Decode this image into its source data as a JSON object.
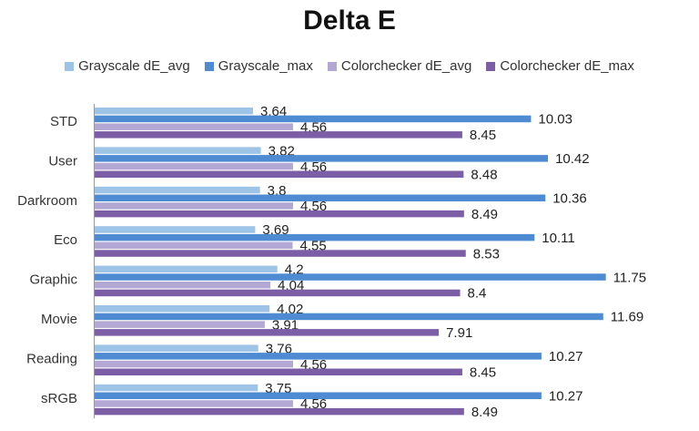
{
  "chart_data": {
    "type": "bar",
    "orientation": "horizontal",
    "title": "Delta E",
    "categories": [
      "STD",
      "User",
      "Darkroom",
      "Eco",
      "Graphic",
      "Movie",
      "Reading",
      "sRGB"
    ],
    "series": [
      {
        "name": "Grayscale dE_avg",
        "color": "#9dc3e6",
        "values": [
          3.64,
          3.82,
          3.8,
          3.69,
          4.2,
          4.02,
          3.76,
          3.75
        ]
      },
      {
        "name": "Grayscale_max",
        "color": "#4f8bd3",
        "values": [
          10.03,
          10.42,
          10.36,
          10.11,
          11.75,
          11.69,
          10.27,
          10.27
        ]
      },
      {
        "name": "Colorchecker dE_avg",
        "color": "#b3a8d4",
        "values": [
          4.56,
          4.56,
          4.56,
          4.55,
          4.04,
          3.91,
          4.56,
          4.56
        ]
      },
      {
        "name": "Colorchecker dE_max",
        "color": "#7b5ea6",
        "values": [
          8.45,
          8.48,
          8.49,
          8.53,
          8.4,
          7.91,
          8.45,
          8.49
        ]
      }
    ],
    "xlim": [
      0,
      12.5
    ],
    "grid": false,
    "legend_position": "top",
    "data_labels": true
  }
}
